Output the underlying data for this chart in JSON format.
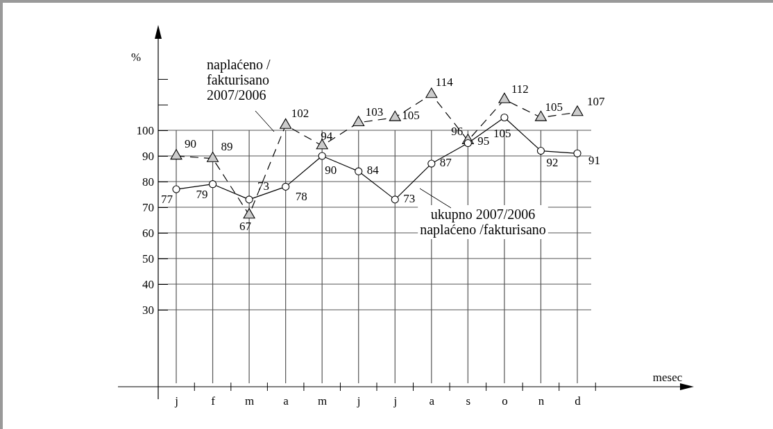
{
  "chart_data": {
    "type": "line",
    "annotations": [
      "mesec"
    ],
    "ylabel": "%",
    "categories": [
      "j",
      "f",
      "m",
      "a",
      "m",
      "j",
      "j",
      "a",
      "s",
      "o",
      "n",
      "d"
    ],
    "series": [
      {
        "name": "naplaćeno /\nfakturisano\n2007/2006",
        "color": "#000000",
        "line_style": "dashed",
        "marker": "triangle",
        "values": [
          90,
          89,
          67,
          102,
          94,
          103,
          105,
          114,
          96,
          112,
          105,
          107
        ]
      },
      {
        "name": "ukupno 2007/2006\nnaplaćeno /fakturisano",
        "color": "#000000",
        "line_style": "solid",
        "marker": "circle",
        "values": [
          77,
          79,
          73,
          78,
          90,
          84,
          73,
          87,
          95,
          105,
          92,
          91
        ]
      }
    ],
    "ylim": [
      0,
      140
    ],
    "yticks": [
      30,
      40,
      50,
      60,
      70,
      80,
      90,
      100,
      {
        "value": 110,
        "label": null
      },
      {
        "value": 120,
        "label": null
      }
    ],
    "grid": true,
    "data_labels": true
  }
}
